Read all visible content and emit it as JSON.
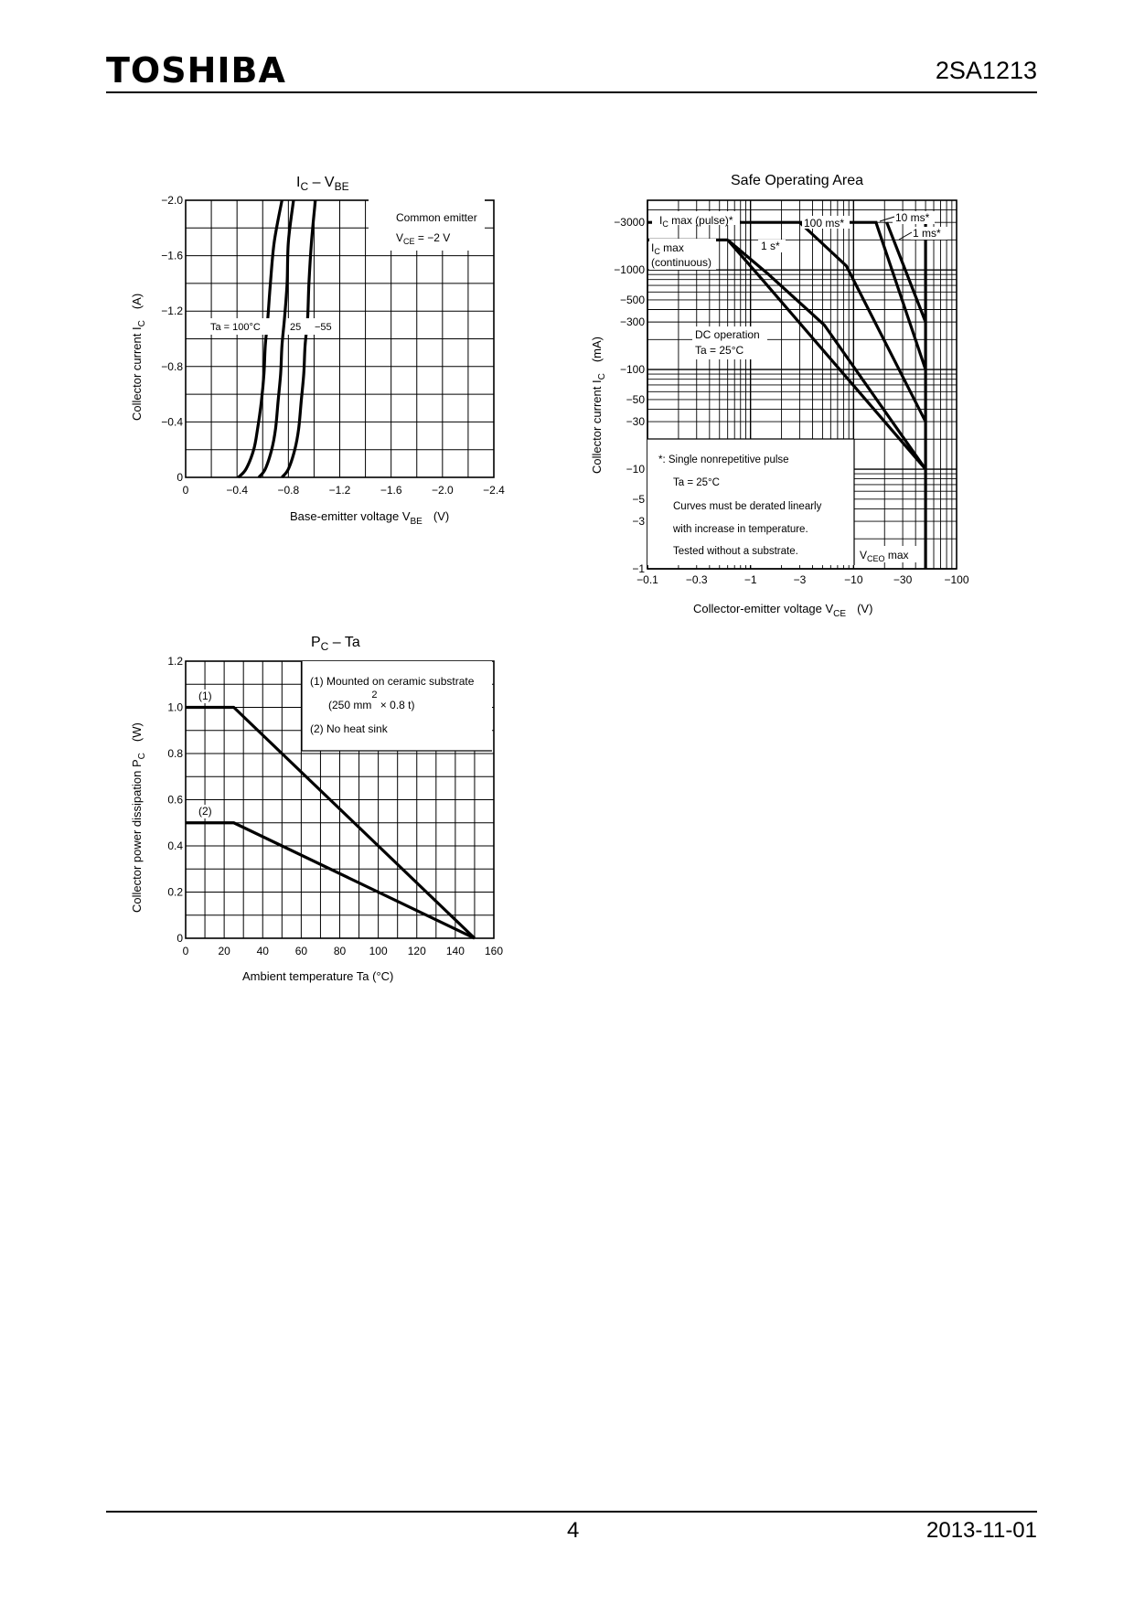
{
  "header": {
    "brand": "TOSHIBA",
    "part_number": "2SA1213"
  },
  "footer": {
    "page_number": "4",
    "date": "2013-11-01"
  },
  "chart_data": [
    {
      "id": "ic_vbe",
      "type": "line",
      "title": "IC – VBE",
      "title_main": "I",
      "title_sub1": "C",
      "title_mid": " – V",
      "title_sub2": "BE",
      "xlabel": "Base-emitter voltage   V",
      "xlabel_sub": "BE",
      "xlabel_unit": "(V)",
      "ylabel": "Collector current   I",
      "ylabel_sub": "C",
      "ylabel_unit": "(A)",
      "xlim": [
        0,
        -2.4
      ],
      "ylim": [
        0,
        -2.0
      ],
      "x_ticks": [
        0,
        -0.4,
        -0.8,
        -1.2,
        -1.6,
        -2.0,
        -2.4
      ],
      "x_tick_labels": [
        "0",
        "−0.4",
        "−0.8",
        "−1.2",
        "−1.6",
        "−2.0",
        "−2.4"
      ],
      "y_ticks": [
        0,
        -0.4,
        -0.8,
        -1.2,
        -1.6,
        -2.0
      ],
      "y_tick_labels": [
        "0",
        "−0.4",
        "−0.8",
        "−1.2",
        "−1.6",
        "−2.0"
      ],
      "annotation_line1": "Common emitter",
      "annotation_line2_main": "V",
      "annotation_line2_sub": "CE",
      "annotation_line2_rest": " = −2 V",
      "curve_labels": [
        "Ta = 100°C",
        "25",
        "−55"
      ],
      "series": [
        {
          "name": "Ta = 100°C",
          "x": [
            -0.41,
            -0.47,
            -0.53,
            -0.56,
            -0.59,
            -0.61,
            -0.62,
            -0.64,
            -0.66,
            -0.69,
            -0.75
          ],
          "y": [
            0,
            -0.06,
            -0.2,
            -0.35,
            -0.55,
            -0.75,
            -0.95,
            -1.15,
            -1.4,
            -1.7,
            -2.0
          ]
        },
        {
          "name": "25",
          "x": [
            -0.57,
            -0.62,
            -0.67,
            -0.7,
            -0.72,
            -0.74,
            -0.75,
            -0.77,
            -0.79,
            -0.8,
            -0.84
          ],
          "y": [
            0,
            -0.06,
            -0.2,
            -0.35,
            -0.55,
            -0.75,
            -0.95,
            -1.15,
            -1.4,
            -1.7,
            -2.0
          ]
        },
        {
          "name": "−55",
          "x": [
            -0.75,
            -0.8,
            -0.85,
            -0.88,
            -0.9,
            -0.92,
            -0.93,
            -0.95,
            -0.96,
            -0.98,
            -1.01
          ],
          "y": [
            0,
            -0.06,
            -0.2,
            -0.35,
            -0.55,
            -0.75,
            -0.95,
            -1.15,
            -1.4,
            -1.7,
            -2.0
          ]
        }
      ]
    },
    {
      "id": "soa",
      "type": "line",
      "title": "Safe Operating Area",
      "xlabel": "Collector-emitter voltage   V",
      "xlabel_sub": "CE",
      "xlabel_unit": "(V)",
      "ylabel": "Collector current   I",
      "ylabel_sub": "C",
      "ylabel_unit": "(mA)",
      "x_scale": "log",
      "y_scale": "log",
      "xlim": [
        -0.1,
        -100
      ],
      "ylim": [
        -1,
        -5000
      ],
      "x_ticks": [
        -0.1,
        -0.3,
        -1,
        -3,
        -10,
        -30,
        -100
      ],
      "x_tick_labels": [
        "−0.1",
        "−0.3",
        "−1",
        "−3",
        "−10",
        "−30",
        "−100"
      ],
      "y_ticks": [
        -1,
        -3,
        -5,
        -10,
        -30,
        -50,
        -100,
        -300,
        -500,
        -1000,
        -3000
      ],
      "y_tick_labels": [
        "−1",
        "−3",
        "−5",
        "−10",
        "−30",
        "−50",
        "−100",
        "−300",
        "−500",
        "−1000",
        "−3000"
      ],
      "labels": {
        "ic_pulse_main": "I",
        "ic_pulse_sub": "C",
        "ic_pulse_rest": " max (pulse)*",
        "ic_cont_main": "I",
        "ic_cont_sub": "C",
        "ic_cont_rest": " max",
        "ic_cont_line2": "(continuous)",
        "ms10": "10 ms*",
        "ms1": "1 ms*",
        "ms100": "100 ms*",
        "s1": "1 s*",
        "dc1": "DC operation",
        "dc2": "Ta = 25°C",
        "vceo_main": "V",
        "vceo_sub": "CEO",
        "vceo_rest": " max"
      },
      "notes": [
        "*:  Single nonrepetitive pulse",
        "Ta = 25°C",
        "Curves must be derated linearly",
        "with increase in temperature.",
        "Tested without a substrate."
      ],
      "series": [
        {
          "name": "IC max (pulse)",
          "x": [
            -0.1,
            -17
          ],
          "y": [
            -3000,
            -3000
          ]
        },
        {
          "name": "IC max (continuous)",
          "x": [
            -0.1,
            -0.6
          ],
          "y": [
            -2000,
            -2000
          ]
        },
        {
          "name": "1 ms",
          "x": [
            -21,
            -50
          ],
          "y": [
            -3000,
            -300
          ]
        },
        {
          "name": "10 ms",
          "x": [
            -16.5,
            -50
          ],
          "y": [
            -3000,
            -100
          ]
        },
        {
          "name": "100 ms",
          "x": [
            -3.0,
            -8.5,
            -50
          ],
          "y": [
            -3000,
            -1100,
            -30
          ]
        },
        {
          "name": "1 s",
          "x": [
            -0.6,
            -1.5,
            -5.2,
            -50
          ],
          "y": [
            -2000,
            -900,
            -280,
            -10
          ]
        },
        {
          "name": "DC",
          "x": [
            -0.6,
            -1.3,
            -50
          ],
          "y": [
            -2000,
            -800,
            -10
          ]
        },
        {
          "name": "VCEO max",
          "x": [
            -50,
            -50
          ],
          "y": [
            -1,
            -3000
          ]
        }
      ]
    },
    {
      "id": "pc_ta",
      "type": "line",
      "title": "PC – Ta",
      "title_main": "P",
      "title_sub1": "C",
      "title_mid": " – Ta",
      "xlabel": "Ambient temperature    Ta    (°C)",
      "ylabel": "Collector power dissipation    P",
      "ylabel_sub": "C",
      "ylabel_unit": "(W)",
      "xlim": [
        0,
        160
      ],
      "ylim": [
        0,
        1.2
      ],
      "x_ticks": [
        0,
        20,
        40,
        60,
        80,
        100,
        120,
        140,
        160
      ],
      "x_tick_labels": [
        "0",
        "20",
        "40",
        "60",
        "80",
        "100",
        "120",
        "140",
        "160"
      ],
      "y_ticks": [
        0,
        0.2,
        0.4,
        0.6,
        0.8,
        1.0,
        1.2
      ],
      "y_tick_labels": [
        "0",
        "0.2",
        "0.4",
        "0.6",
        "0.8",
        "1.0",
        "1.2"
      ],
      "legend": {
        "item1": "(1)  Mounted on ceramic substrate",
        "item1b_a": "(250 mm",
        "item1b_sup": "2",
        "item1b_b": " × 0.8 t)",
        "item2": "(2)  No heat sink"
      },
      "curve_labels": [
        "(1)",
        "(2)"
      ],
      "series": [
        {
          "name": "(1)",
          "x": [
            0,
            25,
            150
          ],
          "y": [
            1.0,
            1.0,
            0
          ]
        },
        {
          "name": "(2)",
          "x": [
            0,
            25,
            150
          ],
          "y": [
            0.5,
            0.5,
            0
          ]
        }
      ]
    }
  ]
}
